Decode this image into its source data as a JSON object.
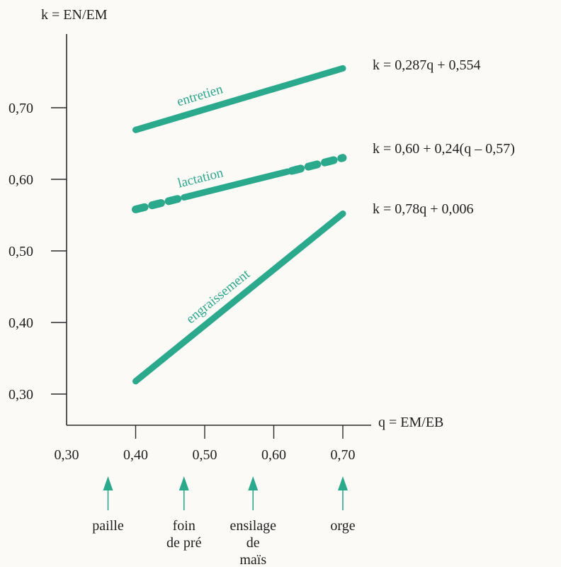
{
  "chart_data": {
    "type": "line",
    "ylabel": "k = EN/EM",
    "xlabel": "q = EM/EB",
    "xlim": [
      0.3,
      0.7
    ],
    "ylim": [
      0.3,
      0.7
    ],
    "x_ticks": [
      0.3,
      0.4,
      0.5,
      0.6,
      0.7
    ],
    "x_tick_labels": [
      "0,30",
      "0,40",
      "0,50",
      "0,60",
      "0,70"
    ],
    "y_ticks": [
      0.3,
      0.4,
      0.5,
      0.6,
      0.7
    ],
    "y_tick_labels": [
      "0,30",
      "0,40",
      "0,50",
      "0,60",
      "0,70"
    ],
    "grid": false,
    "line_color": "#2aa98d",
    "series": [
      {
        "name": "entretien",
        "style": "solid",
        "points": [
          {
            "x": 0.4,
            "y": 0.669
          },
          {
            "x": 0.7,
            "y": 0.755
          }
        ],
        "equation": "k   = 0,287q + 0,554"
      },
      {
        "name": "lactation",
        "style": "mixed",
        "points": [
          {
            "x": 0.4,
            "y": 0.558
          },
          {
            "x": 0.7,
            "y": 0.63
          }
        ],
        "solid_range": [
          0.47,
          0.62
        ],
        "equation": "k  = 0,60 + 0,24(q – 0,57)"
      },
      {
        "name": "engraissement",
        "style": "solid",
        "points": [
          {
            "x": 0.4,
            "y": 0.318
          },
          {
            "x": 0.7,
            "y": 0.552
          }
        ],
        "equation": "k  = 0,78q + 0,006"
      }
    ],
    "annotations": [
      {
        "x": 0.36,
        "label": [
          "paille"
        ]
      },
      {
        "x": 0.47,
        "label": [
          "foin",
          "de pré"
        ]
      },
      {
        "x": 0.57,
        "label": [
          "ensilage",
          "de",
          "maïs"
        ]
      },
      {
        "x": 0.7,
        "label": [
          "orge"
        ]
      }
    ]
  }
}
